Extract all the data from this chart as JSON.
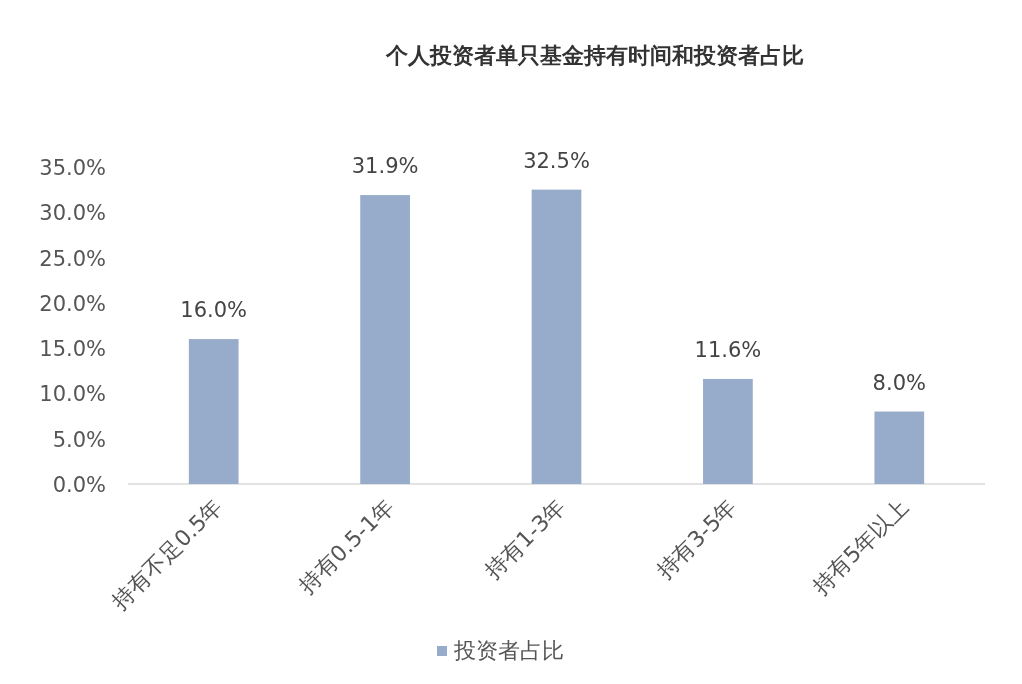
{
  "chart_data": {
    "type": "bar",
    "title": "个人投资者单只基金持有时间和投资者占比",
    "categories": [
      "持有不足0.5年",
      "持有0.5-1年",
      "持有1-3年",
      "持有3-5年",
      "持有5年以上"
    ],
    "series": [
      {
        "name": "投资者占比",
        "color": "#97abcb",
        "values": [
          16.0,
          31.9,
          32.5,
          11.6,
          8.0
        ],
        "value_labels": [
          "16.0%",
          "31.9%",
          "32.5%",
          "11.6%",
          "8.0%"
        ]
      }
    ],
    "ylim": [
      0,
      35
    ],
    "yticks": [
      {
        "value": 0,
        "label": "0.0%"
      },
      {
        "value": 5,
        "label": "5.0%"
      },
      {
        "value": 10,
        "label": "10.0%"
      },
      {
        "value": 15,
        "label": "15.0%"
      },
      {
        "value": 20,
        "label": "20.0%"
      },
      {
        "value": 25,
        "label": "25.0%"
      },
      {
        "value": 30,
        "label": "30.0%"
      },
      {
        "value": 35,
        "label": "35.0%"
      }
    ],
    "grid": false,
    "legend": "bottom"
  }
}
